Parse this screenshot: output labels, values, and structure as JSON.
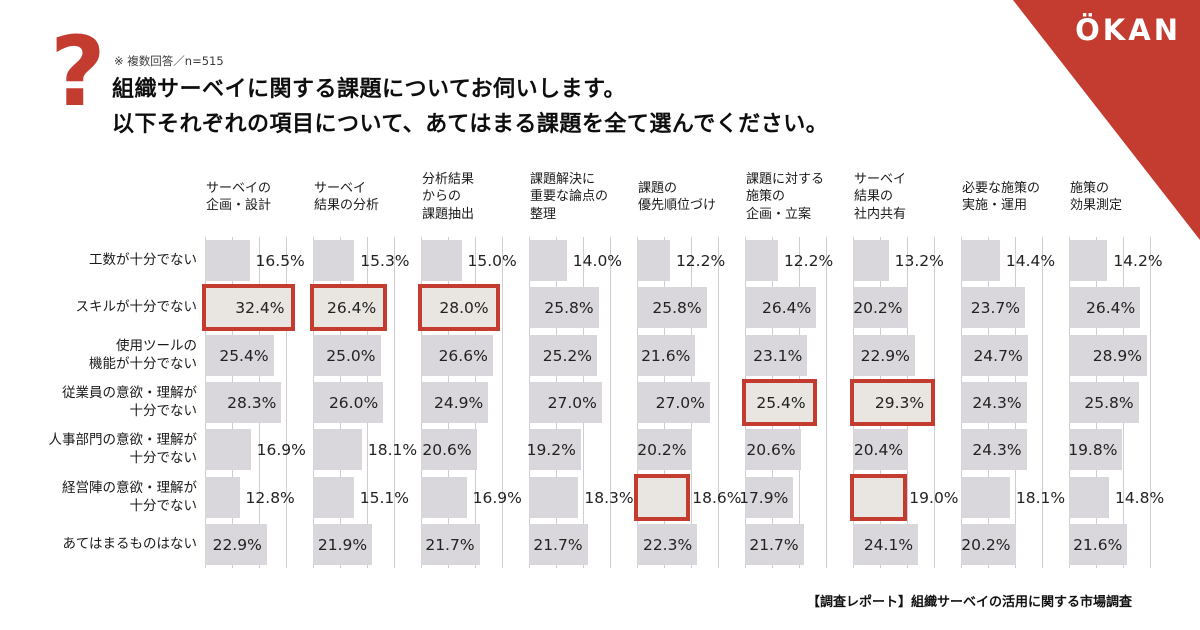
{
  "logo": {
    "text": "ÖKAN"
  },
  "header": {
    "question_mark": "?",
    "note": "※ 複数回答／n=515",
    "title_line1": "組織サーベイに関する課題についてお伺いします。",
    "title_line2": "以下それぞれの項目について、あてはまる課題を全て選んでください。"
  },
  "footer": {
    "caption": "【調査レポート】組織サーベイの活用に関する市場調査"
  },
  "colors": {
    "accent_red": "#c43b2f",
    "bar_fill": "#d9d7db",
    "bar_highlight_fill": "#e9e5e1",
    "gridline": "#cfccd2",
    "background": "#ffffff",
    "logo_text": "#ffffff"
  },
  "chart_data": {
    "type": "bar",
    "orientation": "horizontal",
    "unit": "%",
    "n": 515,
    "title": "組織サーベイに関する課題（項目別・複数回答）",
    "legend_position": "none",
    "grid": true,
    "x_axis": {
      "min": 0,
      "gridline_step_percent": 10,
      "max_gridline_percent": 30,
      "tick_labels_shown": false
    },
    "columns": [
      "サーベイの\n企画・設計",
      "サーベイ\n結果の分析",
      "分析結果\nからの\n課題抽出",
      "課題解決に\n重要な論点の\n整理",
      "課題の\n優先順位づけ",
      "課題に対する\n施策の\n企画・立案",
      "サーベイ\n結果の\n社内共有",
      "必要な施策の\n実施・運用",
      "施策の\n効果測定"
    ],
    "rows": [
      "工数が十分でない",
      "スキルが十分でない",
      "使用ツールの\n機能が十分でない",
      "従業員の意欲・理解が\n十分でない",
      "人事部門の意欲・理解が\n十分でない",
      "経営陣の意欲・理解が\n十分でない",
      "あてはまるものはない"
    ],
    "values": [
      [
        16.5,
        15.3,
        15.0,
        14.0,
        12.2,
        12.2,
        13.2,
        14.4,
        14.2
      ],
      [
        32.4,
        26.4,
        28.0,
        25.8,
        25.8,
        26.4,
        20.2,
        23.7,
        26.4
      ],
      [
        25.4,
        25.0,
        26.6,
        25.2,
        21.6,
        23.1,
        22.9,
        24.7,
        28.9
      ],
      [
        28.3,
        26.0,
        24.9,
        27.0,
        27.0,
        25.4,
        29.3,
        24.3,
        25.8
      ],
      [
        16.9,
        18.1,
        20.6,
        19.2,
        20.2,
        20.6,
        20.4,
        24.3,
        19.8
      ],
      [
        12.8,
        15.1,
        16.9,
        18.3,
        18.6,
        17.9,
        19.0,
        18.1,
        14.8
      ],
      [
        22.9,
        21.9,
        21.7,
        21.7,
        22.3,
        21.7,
        24.1,
        20.2,
        21.6
      ]
    ],
    "highlighted_cells": [
      [
        1,
        0
      ],
      [
        1,
        1
      ],
      [
        1,
        2
      ],
      [
        3,
        5
      ],
      [
        3,
        6
      ],
      [
        5,
        4
      ],
      [
        5,
        6
      ]
    ],
    "labels_outside_cells": [
      [
        0,
        0
      ],
      [
        0,
        1
      ],
      [
        0,
        2
      ],
      [
        0,
        3
      ],
      [
        0,
        4
      ],
      [
        0,
        5
      ],
      [
        0,
        6
      ],
      [
        0,
        7
      ],
      [
        0,
        8
      ],
      [
        4,
        0
      ],
      [
        4,
        1
      ],
      [
        5,
        0
      ],
      [
        5,
        1
      ],
      [
        5,
        2
      ],
      [
        5,
        3
      ],
      [
        5,
        4
      ],
      [
        5,
        6
      ],
      [
        5,
        7
      ],
      [
        5,
        8
      ]
    ]
  }
}
